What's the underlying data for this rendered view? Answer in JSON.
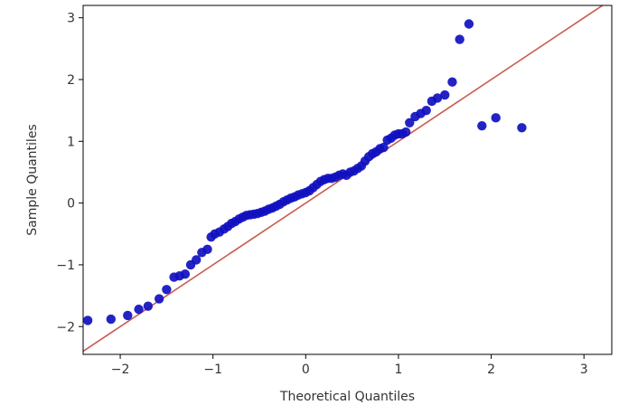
{
  "chart_data": {
    "type": "scatter",
    "title": "",
    "xlabel": "Theoretical Quantiles",
    "ylabel": "Sample Quantiles",
    "xlim": [
      -2.4,
      3.3
    ],
    "ylim": [
      -2.45,
      3.2
    ],
    "xticks": [
      -2,
      -1,
      0,
      1,
      2,
      3
    ],
    "yticks": [
      -2,
      -1,
      0,
      1,
      2,
      3
    ],
    "grid": false,
    "marker_color": "#1010c0",
    "reference_line": {
      "color": "#c85a50",
      "x": [
        -2.4,
        3.3
      ],
      "y": [
        -2.4,
        3.3
      ]
    },
    "points": {
      "x": [
        -2.35,
        -2.1,
        -1.92,
        -1.8,
        -1.7,
        -1.58,
        -1.5,
        -1.42,
        -1.36,
        -1.3,
        -1.24,
        -1.18,
        -1.12,
        -1.06,
        -1.02,
        -0.98,
        -0.93,
        -0.88,
        -0.84,
        -0.8,
        -0.76,
        -0.72,
        -0.68,
        -0.64,
        -0.6,
        -0.56,
        -0.52,
        -0.48,
        -0.44,
        -0.4,
        -0.36,
        -0.32,
        -0.28,
        -0.24,
        -0.2,
        -0.16,
        -0.12,
        -0.08,
        -0.04,
        0.0,
        0.04,
        0.08,
        0.12,
        0.16,
        0.2,
        0.24,
        0.28,
        0.32,
        0.36,
        0.4,
        0.44,
        0.48,
        0.52,
        0.56,
        0.6,
        0.64,
        0.68,
        0.72,
        0.76,
        0.8,
        0.84,
        0.88,
        0.92,
        0.96,
        1.0,
        1.04,
        1.08,
        1.12,
        1.18,
        1.24,
        1.3,
        1.36,
        1.42,
        1.5,
        1.58,
        1.66,
        1.76,
        1.9,
        2.05,
        2.33
      ],
      "y": [
        -1.9,
        -1.88,
        -1.82,
        -1.72,
        -1.67,
        -1.55,
        -1.4,
        -1.2,
        -1.18,
        -1.15,
        -1.0,
        -0.92,
        -0.8,
        -0.75,
        -0.55,
        -0.5,
        -0.47,
        -0.42,
        -0.38,
        -0.33,
        -0.3,
        -0.26,
        -0.23,
        -0.2,
        -0.19,
        -0.18,
        -0.17,
        -0.15,
        -0.13,
        -0.1,
        -0.08,
        -0.05,
        -0.02,
        0.02,
        0.05,
        0.08,
        0.1,
        0.13,
        0.15,
        0.17,
        0.2,
        0.25,
        0.3,
        0.35,
        0.38,
        0.4,
        0.4,
        0.42,
        0.45,
        0.47,
        0.45,
        0.5,
        0.52,
        0.56,
        0.6,
        0.68,
        0.75,
        0.8,
        0.83,
        0.88,
        0.9,
        1.02,
        1.05,
        1.1,
        1.12,
        1.12,
        1.15,
        1.3,
        1.4,
        1.45,
        1.5,
        1.65,
        1.7,
        1.75,
        1.96,
        2.65,
        2.9,
        1.25,
        1.38,
        1.22
      ]
    }
  }
}
